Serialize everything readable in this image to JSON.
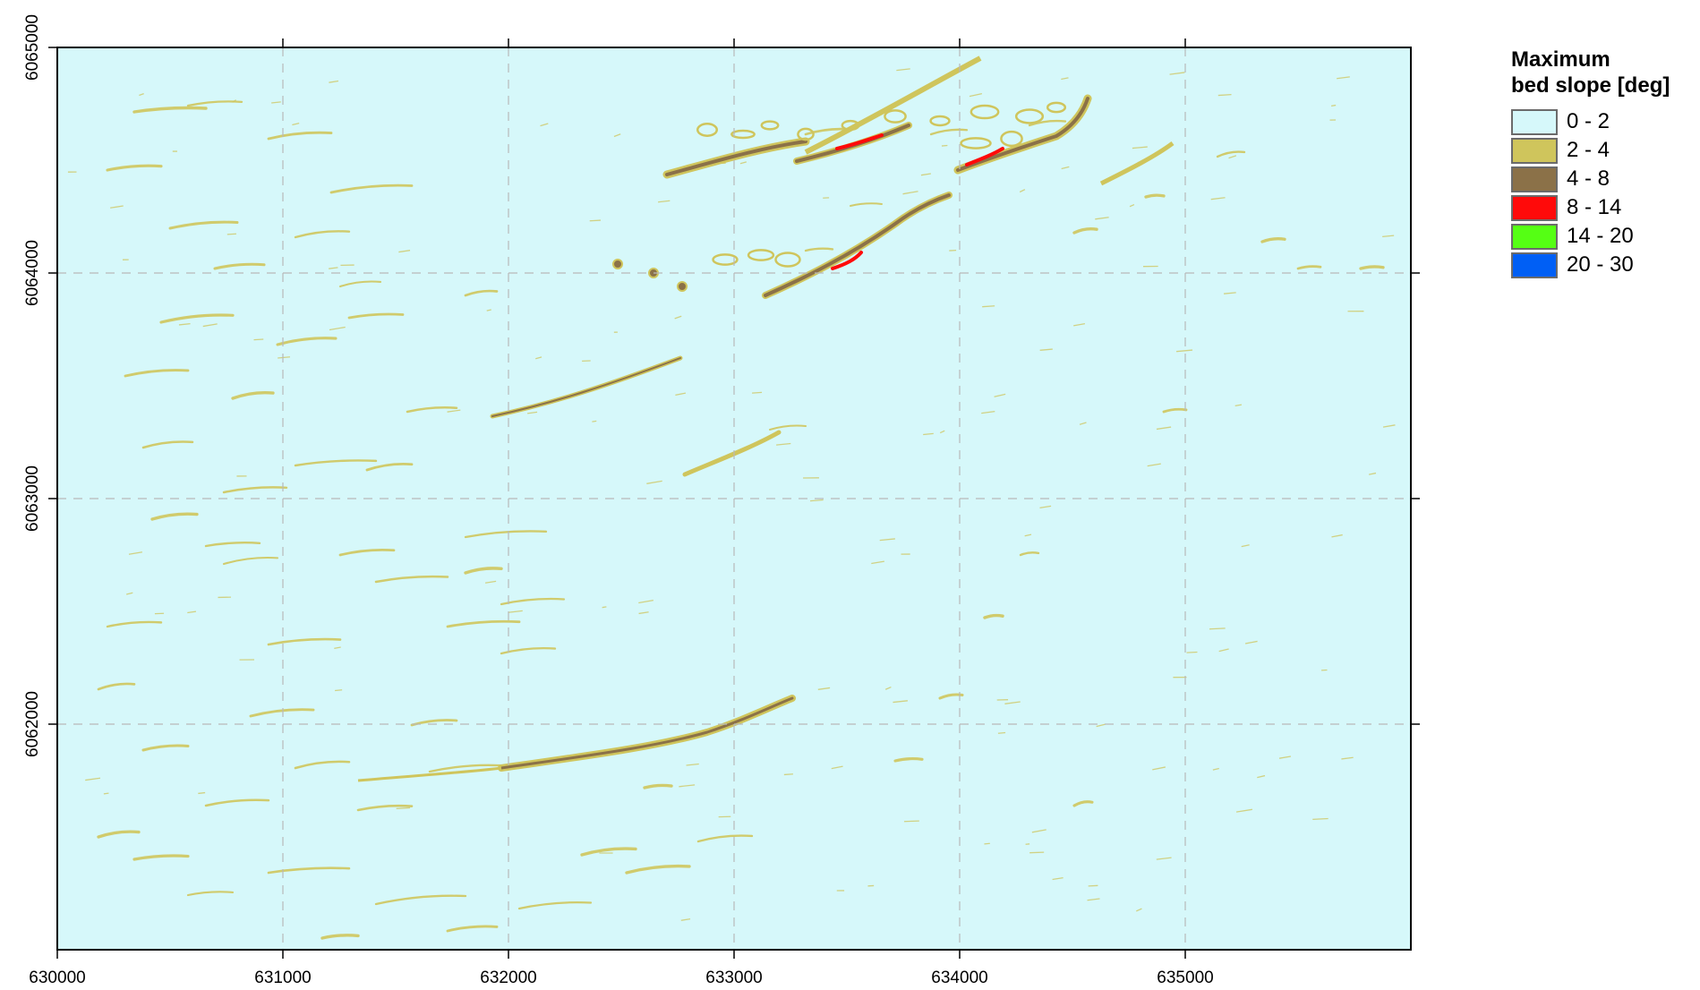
{
  "legend": {
    "title_line1": "Maximum",
    "title_line2": "bed slope [deg]",
    "classes": [
      {
        "label": "0 - 2",
        "color": "#d6f8fa"
      },
      {
        "label": "2 - 4",
        "color": "#cfc55c"
      },
      {
        "label": "4 - 8",
        "color": "#8b7148"
      },
      {
        "label": "8 - 14",
        "color": "#ff0a0a"
      },
      {
        "label": "14 - 20",
        "color": "#55ff14"
      },
      {
        "label": "20 - 30",
        "color": "#005ff5"
      }
    ]
  },
  "axes": {
    "x_ticks": [
      "630000",
      "631000",
      "632000",
      "633000",
      "634000",
      "635000"
    ],
    "y_ticks": [
      "6065000",
      "6064000",
      "6063000",
      "6062000"
    ]
  },
  "map": {
    "background_color": "#d6f8fa",
    "grid": "dashed",
    "features": [
      {
        "name": "major-ridge-southwest",
        "class": "2 - 4"
      },
      {
        "name": "ridge-north-upper",
        "class": "8 - 14"
      },
      {
        "name": "ridge-north-lower",
        "class": "8 - 14"
      },
      {
        "name": "ridge-northeast",
        "class": "8 - 14"
      },
      {
        "name": "ridge-central",
        "class": "4 - 8"
      }
    ]
  }
}
